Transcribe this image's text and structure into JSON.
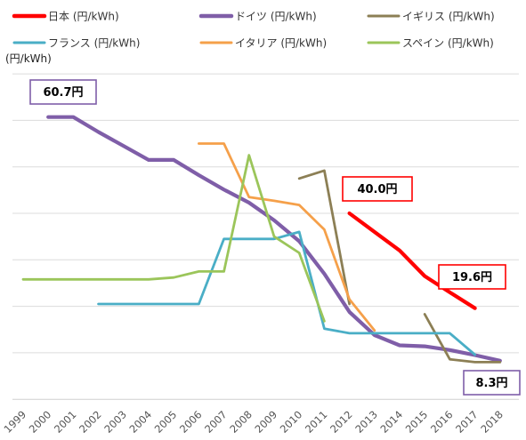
{
  "chart_data": {
    "type": "line",
    "ylabel": "(円/kWh)",
    "categories": [
      "1999",
      "2000",
      "2001",
      "2002",
      "2003",
      "2004",
      "2005",
      "2006",
      "2007",
      "2008",
      "2009",
      "2010",
      "2011",
      "2012",
      "2013",
      "2014",
      "2015",
      "2016",
      "2017",
      "2018"
    ],
    "ylim": [
      0,
      70
    ],
    "grid": true,
    "legend_position": "top",
    "series": [
      {
        "name": "日本 (円/kWh)",
        "color": "#ff0000",
        "width": 4.2,
        "values": [
          null,
          null,
          null,
          null,
          null,
          null,
          null,
          null,
          null,
          null,
          null,
          null,
          null,
          40.0,
          36.0,
          32.0,
          26.5,
          23.0,
          19.6,
          null
        ]
      },
      {
        "name": "ドイツ (円/kWh)",
        "color": "#7f5ea8",
        "width": 4.2,
        "values": [
          null,
          60.7,
          60.7,
          57.5,
          54.5,
          51.5,
          51.5,
          48.2,
          45.1,
          42.3,
          38.5,
          34.0,
          27.0,
          18.8,
          13.8,
          11.6,
          11.4,
          10.6,
          9.5,
          8.3
        ]
      },
      {
        "name": "イギリス (円/kWh)",
        "color": "#8c7f55",
        "width": 2.8,
        "values": [
          null,
          null,
          null,
          null,
          null,
          null,
          null,
          null,
          null,
          null,
          null,
          47.5,
          49.2,
          20.5,
          null,
          null,
          18.3,
          8.6,
          8.0,
          8.0
        ]
      },
      {
        "name": "フランス (円/kWh)",
        "color": "#4aaec6",
        "width": 2.8,
        "values": [
          null,
          null,
          null,
          20.5,
          20.5,
          20.5,
          20.5,
          20.5,
          34.5,
          34.5,
          34.5,
          36.0,
          15.2,
          14.2,
          14.2,
          14.2,
          14.2,
          14.2,
          9.6,
          null
        ]
      },
      {
        "name": "イタリア (円/kWh)",
        "color": "#f5a04a",
        "width": 2.8,
        "values": [
          null,
          null,
          null,
          null,
          null,
          null,
          null,
          55.0,
          55.0,
          43.5,
          42.7,
          41.8,
          36.5,
          21.5,
          14.8,
          null,
          null,
          null,
          null,
          null
        ]
      },
      {
        "name": "スペイン (円/kWh)",
        "color": "#9bc55a",
        "width": 2.8,
        "values": [
          25.8,
          25.8,
          25.8,
          25.8,
          25.8,
          25.8,
          26.2,
          27.5,
          27.5,
          52.5,
          35.0,
          31.5,
          16.8,
          null,
          null,
          null,
          null,
          null,
          null,
          null
        ]
      }
    ],
    "annotations": [
      {
        "text": "60.7円",
        "border": "#7f5ea8"
      },
      {
        "text": "40.0円",
        "border": "#ff0000"
      },
      {
        "text": "19.6円",
        "border": "#ff0000"
      },
      {
        "text": "8.3円",
        "border": "#7f5ea8"
      }
    ]
  }
}
